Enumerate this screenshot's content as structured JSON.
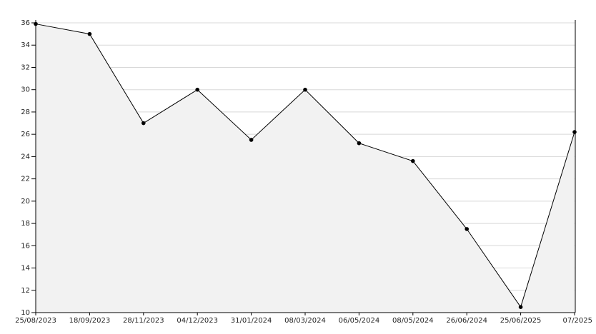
{
  "chart_data": {
    "type": "line",
    "categories": [
      "25/08/2023",
      "18/09/2023",
      "28/11/2023",
      "04/12/2023",
      "31/01/2024",
      "08/03/2024",
      "06/05/2024",
      "08/05/2024",
      "26/06/2024",
      "25/06/2025",
      "07/2025"
    ],
    "series": [
      {
        "color": "#000000",
        "values": [
          35.9,
          35,
          27,
          30,
          25.5,
          30,
          25.2,
          23.6,
          17.5,
          10.5,
          26.2
        ]
      }
    ],
    "ylim": [
      10,
      36
    ],
    "yticks": [
      10,
      12,
      14,
      16,
      18,
      20,
      22,
      24,
      26,
      28,
      30,
      32,
      34,
      36
    ],
    "grid": true,
    "area_fill": "#f2f2f2"
  }
}
